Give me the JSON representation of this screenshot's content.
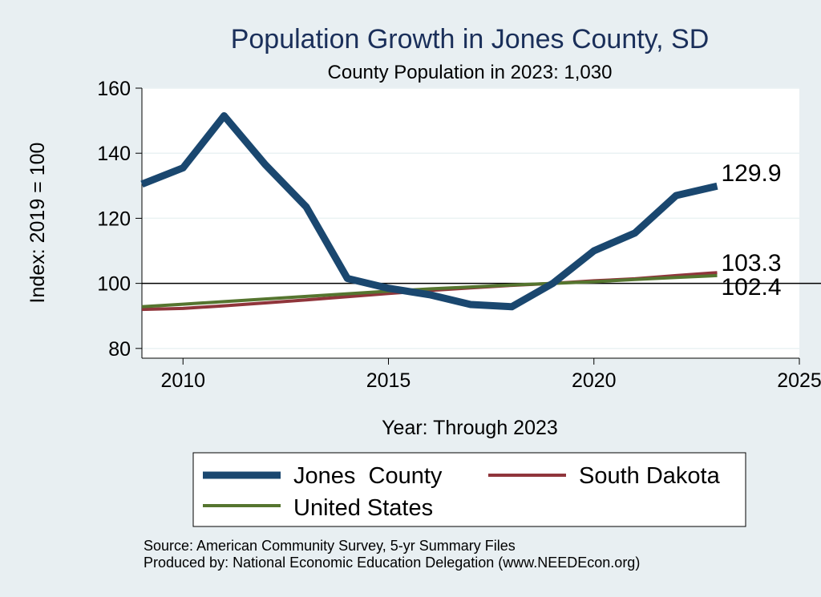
{
  "chart_data": {
    "type": "line",
    "title": "Population Growth in Jones County, SD",
    "subtitle": "County Population in 2023: 1,030",
    "xlabel": "Year: Through 2023",
    "ylabel": "Index: 2019 = 100",
    "xlim": [
      2009,
      2025
    ],
    "ylim": [
      77,
      160
    ],
    "xticks": [
      2010,
      2015,
      2020,
      2025
    ],
    "yticks": [
      80,
      100,
      120,
      140,
      160
    ],
    "reference_line": 100,
    "grid": true,
    "legend_position": "bottom",
    "x": [
      2009,
      2010,
      2011,
      2012,
      2013,
      2014,
      2015,
      2016,
      2017,
      2018,
      2019,
      2020,
      2021,
      2022,
      2023
    ],
    "series": [
      {
        "name": "Jones  County",
        "color": "#1a476f",
        "values": [
          130.5,
          135.5,
          151.5,
          136.5,
          123.5,
          101.5,
          98.5,
          96.5,
          93.5,
          92.8,
          100,
          110,
          115.5,
          127,
          129.9
        ],
        "end_label": "129.9"
      },
      {
        "name": "South Dakota",
        "color": "#90353b",
        "values": [
          92,
          92.3,
          93.1,
          94,
          94.9,
          95.9,
          96.9,
          97.8,
          98.6,
          99.4,
          100,
          100.8,
          101.4,
          102.4,
          103.3
        ],
        "end_label": "103.3"
      },
      {
        "name": "United States",
        "color": "#55752f",
        "values": [
          92.8,
          93.6,
          94.4,
          95.2,
          96,
          96.8,
          97.6,
          98.3,
          98.9,
          99.5,
          100,
          100.5,
          101.2,
          101.8,
          102.4
        ],
        "end_label": "102.4"
      }
    ]
  },
  "footer": {
    "source": "Source: American Community Survey, 5-yr Summary Files",
    "produced": "Produced by: National Economic Education Delegation (www.NEEDEcon.org)"
  }
}
